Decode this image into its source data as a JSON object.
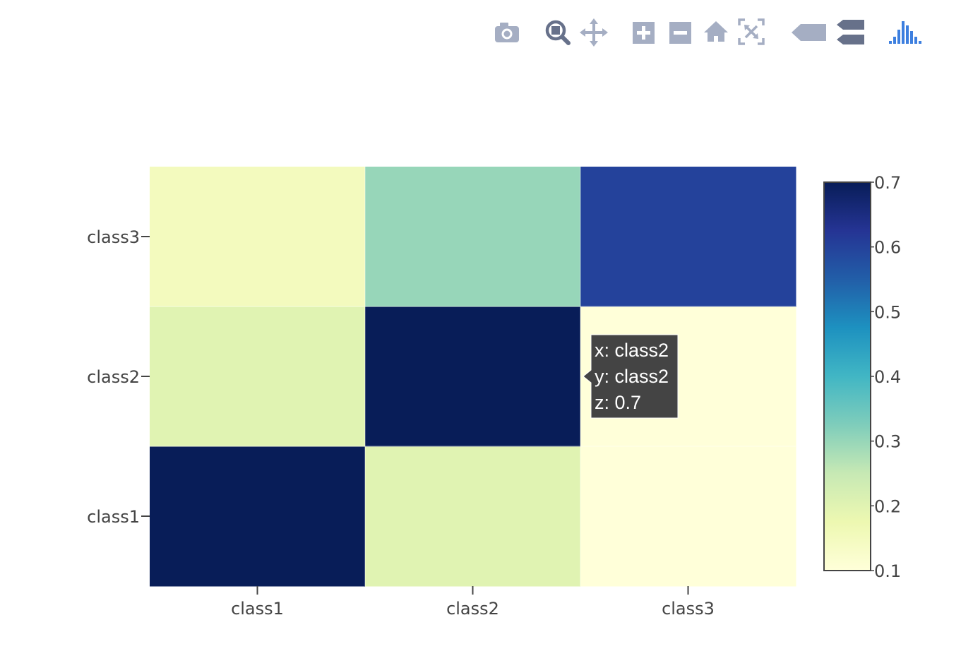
{
  "modebar": {
    "buttons": [
      {
        "icon": "camera-icon",
        "title": "Download plot as a png"
      },
      {
        "icon": "zoom-icon",
        "title": "Zoom"
      },
      {
        "icon": "pan-icon",
        "title": "Pan"
      },
      {
        "icon": "zoom-in-icon",
        "title": "Zoom in"
      },
      {
        "icon": "zoom-out-icon",
        "title": "Zoom out"
      },
      {
        "icon": "home-icon",
        "title": "Reset axes"
      },
      {
        "icon": "autoscale-icon",
        "title": "Autoscale"
      },
      {
        "icon": "hover-closest-icon",
        "title": "Show closest data on hover"
      },
      {
        "icon": "hover-compare-icon",
        "title": "Compare data on hover"
      },
      {
        "icon": "plotly-logo-icon",
        "title": "Produced with Plotly"
      }
    ]
  },
  "chart_data": {
    "type": "heatmap",
    "x": [
      "class1",
      "class2",
      "class3"
    ],
    "y": [
      "class1",
      "class2",
      "class3"
    ],
    "z": [
      [
        0.7,
        0.2,
        0.1
      ],
      [
        0.2,
        0.7,
        0.1
      ],
      [
        0.15,
        0.3,
        0.6
      ]
    ],
    "colorscale": "YlGnBu",
    "colorscale_stops": [
      [
        0.0,
        "#ffffd9"
      ],
      [
        0.125,
        "#edf8b1"
      ],
      [
        0.25,
        "#c7e9b4"
      ],
      [
        0.375,
        "#7fcdbb"
      ],
      [
        0.5,
        "#41b6c4"
      ],
      [
        0.625,
        "#1d91c0"
      ],
      [
        0.75,
        "#225ea8"
      ],
      [
        0.875,
        "#253494"
      ],
      [
        1.0,
        "#081d58"
      ]
    ],
    "zmin": 0.1,
    "zmax": 0.7,
    "colorbar": {
      "tickvals": [
        0.1,
        0.2,
        0.3,
        0.4,
        0.5,
        0.6,
        0.7
      ],
      "ticktext": [
        "0.1",
        "0.2",
        "0.3",
        "0.4",
        "0.5",
        "0.6",
        "0.7"
      ]
    },
    "hover": {
      "x": "class2",
      "y": "class2",
      "z": 0.7,
      "line_x": "x: class2",
      "line_y": "y: class2",
      "line_z": "z: 0.7"
    }
  }
}
